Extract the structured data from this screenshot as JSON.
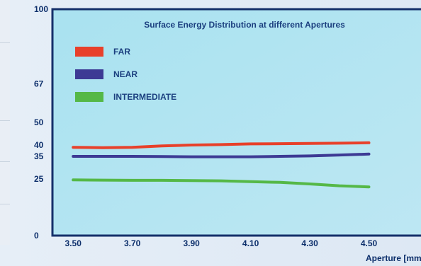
{
  "chart_data": {
    "type": "line",
    "title": "Surface Energy Distribution at different Apertures",
    "xlabel": "Aperture [mm]",
    "ylabel": "",
    "x": [
      3.5,
      3.6,
      3.7,
      3.8,
      3.9,
      4.0,
      4.1,
      4.2,
      4.3,
      4.4,
      4.5
    ],
    "x_ticks": [
      "3.50",
      "3.70",
      "3.90",
      "4.10",
      "4.30",
      "4.50"
    ],
    "y_ticks": [
      "0",
      "25",
      "35",
      "40",
      "50",
      "67",
      "100"
    ],
    "xlim": [
      3.43,
      4.7
    ],
    "ylim": [
      0,
      100
    ],
    "grid": false,
    "legend_position": "top-left",
    "series": [
      {
        "name": "FAR",
        "color": "#e8402a",
        "values": [
          39.0,
          38.8,
          39.0,
          39.6,
          40.0,
          40.2,
          40.5,
          40.6,
          40.7,
          40.8,
          41.0
        ]
      },
      {
        "name": "NEAR",
        "color": "#3d3a94",
        "values": [
          35.0,
          35.0,
          35.0,
          34.9,
          34.8,
          34.8,
          34.8,
          35.0,
          35.2,
          35.6,
          36.0
        ]
      },
      {
        "name": "INTERMEDIATE",
        "color": "#55b847",
        "values": [
          24.6,
          24.5,
          24.4,
          24.4,
          24.3,
          24.2,
          23.8,
          23.5,
          22.8,
          22.0,
          21.5
        ]
      }
    ]
  }
}
